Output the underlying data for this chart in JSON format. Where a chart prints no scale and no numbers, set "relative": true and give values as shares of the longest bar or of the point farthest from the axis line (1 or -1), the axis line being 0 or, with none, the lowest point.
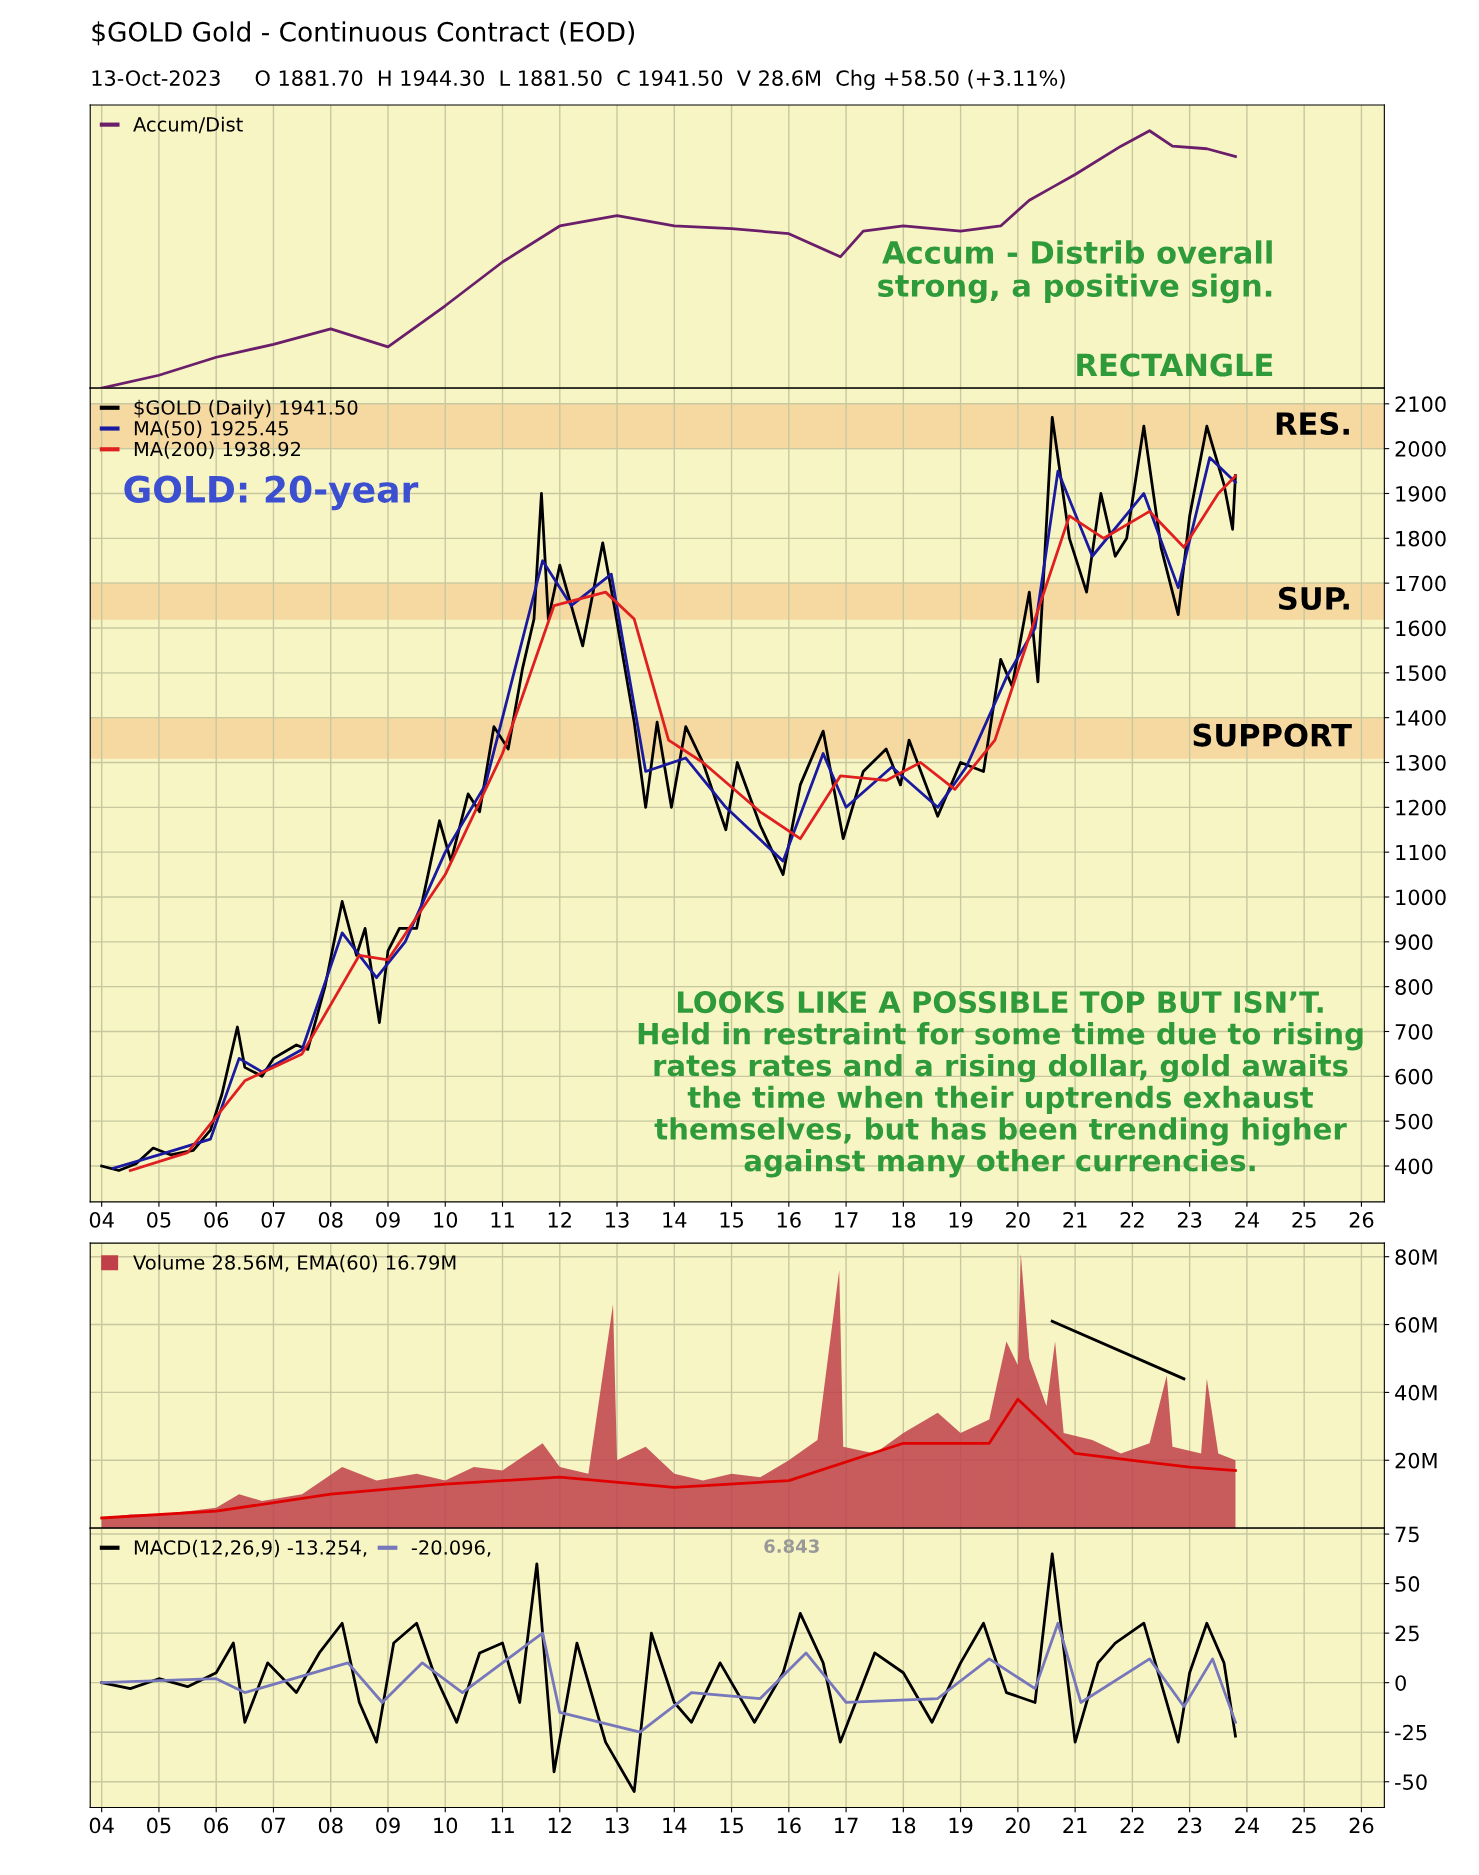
{
  "chart_data": [
    {
      "type": "line",
      "title": "$GOLD Gold - Continuous Contract (EOD)",
      "subtitle": "13-Oct-2023     O 1881.70  H 1944.30  L 1881.50  C 1941.50  V 28.6M  Chg +58.50 (+3.11%)",
      "relative": true,
      "xlim": [
        2003.8,
        2026.4
      ],
      "xticks": [
        2004,
        2005,
        2006,
        2007,
        2008,
        2009,
        2010,
        2011,
        2012,
        2013,
        2014,
        2015,
        2016,
        2017,
        2018,
        2019,
        2020,
        2021,
        2022,
        2023,
        2024,
        2025,
        2026
      ],
      "tick_labels": false,
      "grid": "x",
      "legend": "top left",
      "x": [
        2004,
        2005,
        2006,
        2007,
        2008,
        2009,
        2010,
        2011,
        2012,
        2013,
        2014,
        2015,
        2016,
        2016.9,
        2017.3,
        2018,
        2019,
        2019.7,
        2020.2,
        2020.6,
        2021,
        2021.8,
        2022.3,
        2022.7,
        2023.3,
        2023.8
      ],
      "series": [
        {
          "name": "Accum/Dist",
          "color": "#6b1f6b",
          "values": [
            0,
            0.05,
            0.12,
            0.17,
            0.23,
            0.16,
            0.32,
            0.49,
            0.63,
            0.67,
            0.63,
            0.62,
            0.6,
            0.51,
            0.61,
            0.63,
            0.61,
            0.63,
            0.73,
            0.78,
            0.83,
            0.94,
            1.0,
            0.94,
            0.93,
            0.9
          ]
        }
      ],
      "annotations": [
        "Accum - Distrib overall\nstrong, a positive sign.",
        "RECTANGLE"
      ]
    },
    {
      "type": "line",
      "xlim": [
        2003.8,
        2026.4
      ],
      "ylim": [
        320,
        2135
      ],
      "yticks": [
        400,
        500,
        600,
        700,
        800,
        900,
        1000,
        1100,
        1200,
        1300,
        1400,
        1500,
        1600,
        1700,
        1800,
        1900,
        2000,
        2100
      ],
      "xticks": [
        {
          "value": 2004,
          "label": "04"
        },
        {
          "value": 2005,
          "label": "05"
        },
        {
          "value": 2006,
          "label": "06"
        },
        {
          "value": 2007,
          "label": "07"
        },
        {
          "value": 2008,
          "label": "08"
        },
        {
          "value": 2009,
          "label": "09"
        },
        {
          "value": 2010,
          "label": "10"
        },
        {
          "value": 2011,
          "label": "11"
        },
        {
          "value": 2012,
          "label": "12"
        },
        {
          "value": 2013,
          "label": "13"
        },
        {
          "value": 2014,
          "label": "14"
        },
        {
          "value": 2015,
          "label": "15"
        },
        {
          "value": 2016,
          "label": "16"
        },
        {
          "value": 2017,
          "label": "17"
        },
        {
          "value": 2018,
          "label": "18"
        },
        {
          "value": 2019,
          "label": "19"
        },
        {
          "value": 2020,
          "label": "20"
        },
        {
          "value": 2021,
          "label": "21"
        },
        {
          "value": 2022,
          "label": "22"
        },
        {
          "value": 2023,
          "label": "23"
        },
        {
          "value": 2024,
          "label": "24"
        },
        {
          "value": 2025,
          "label": "25"
        },
        {
          "value": 2026,
          "label": "26"
        }
      ],
      "grid": true,
      "legend": "top left",
      "series": [
        {
          "name": "$GOLD (Daily) 1941.50",
          "color": "#000000",
          "x": [
            2004.0,
            2004.3,
            2004.6,
            2004.9,
            2005.2,
            2005.6,
            2005.9,
            2006.1,
            2006.37,
            2006.5,
            2006.8,
            2007.0,
            2007.4,
            2007.6,
            2007.9,
            2008.2,
            2008.45,
            2008.6,
            2008.85,
            2009.0,
            2009.2,
            2009.5,
            2009.9,
            2010.1,
            2010.4,
            2010.6,
            2010.85,
            2011.1,
            2011.35,
            2011.55,
            2011.68,
            2011.8,
            2012.0,
            2012.4,
            2012.75,
            2012.95,
            2013.3,
            2013.5,
            2013.7,
            2013.95,
            2014.2,
            2014.5,
            2014.9,
            2015.1,
            2015.5,
            2015.9,
            2016.2,
            2016.6,
            2016.95,
            2017.3,
            2017.7,
            2017.95,
            2018.1,
            2018.6,
            2019.0,
            2019.4,
            2019.7,
            2019.9,
            2020.2,
            2020.35,
            2020.6,
            2020.9,
            2021.2,
            2021.45,
            2021.7,
            2021.9,
            2022.2,
            2022.5,
            2022.8,
            2023.0,
            2023.3,
            2023.6,
            2023.75,
            2023.8
          ],
          "values": [
            400,
            390,
            405,
            440,
            425,
            435,
            480,
            560,
            710,
            620,
            600,
            640,
            670,
            660,
            800,
            990,
            870,
            930,
            720,
            880,
            930,
            930,
            1170,
            1080,
            1230,
            1190,
            1380,
            1330,
            1510,
            1620,
            1900,
            1620,
            1740,
            1560,
            1790,
            1650,
            1390,
            1200,
            1390,
            1200,
            1380,
            1300,
            1150,
            1300,
            1160,
            1050,
            1250,
            1370,
            1130,
            1280,
            1330,
            1250,
            1350,
            1180,
            1300,
            1280,
            1530,
            1470,
            1680,
            1480,
            2070,
            1800,
            1680,
            1900,
            1760,
            1800,
            2050,
            1780,
            1630,
            1850,
            2050,
            1920,
            1820,
            1940
          ]
        },
        {
          "name": "MA(50) 1925.45",
          "color": "#1a1aa0",
          "x": [
            2004.2,
            2005,
            2005.9,
            2006.4,
            2006.8,
            2007.5,
            2008.2,
            2008.8,
            2009.3,
            2010,
            2010.7,
            2011.7,
            2012.2,
            2012.9,
            2013.5,
            2014.2,
            2014.9,
            2015.9,
            2016.6,
            2017.0,
            2017.8,
            2018.6,
            2019.1,
            2019.8,
            2020.3,
            2020.7,
            2021.3,
            2022.2,
            2022.8,
            2023.35,
            2023.8
          ],
          "values": [
            395,
            425,
            460,
            640,
            610,
            660,
            920,
            820,
            900,
            1100,
            1250,
            1750,
            1650,
            1720,
            1280,
            1310,
            1200,
            1080,
            1320,
            1200,
            1290,
            1200,
            1290,
            1490,
            1600,
            1950,
            1760,
            1900,
            1690,
            1980,
            1925
          ]
        },
        {
          "name": "MA(200) 1938.92",
          "color": "#e02020",
          "x": [
            2004.5,
            2005.5,
            2006.5,
            2007.5,
            2008.5,
            2009.0,
            2010,
            2011,
            2011.9,
            2012.8,
            2013.3,
            2013.9,
            2014.5,
            2015.5,
            2016.2,
            2016.9,
            2017.7,
            2018.3,
            2018.9,
            2019.6,
            2020.3,
            2020.9,
            2021.5,
            2022.3,
            2022.9,
            2023.5,
            2023.8
          ],
          "values": [
            390,
            430,
            590,
            650,
            870,
            860,
            1050,
            1320,
            1650,
            1680,
            1620,
            1350,
            1300,
            1190,
            1130,
            1270,
            1260,
            1300,
            1240,
            1350,
            1620,
            1850,
            1800,
            1860,
            1780,
            1900,
            1939
          ]
        }
      ],
      "bands": [
        {
          "axis": "y",
          "from": 2000,
          "to": 2100,
          "label": "RES.",
          "color": "#f5d9a0"
        },
        {
          "axis": "y",
          "from": 1620,
          "to": 1700,
          "label": "SUP.",
          "color": "#f5d9a0"
        },
        {
          "axis": "y",
          "from": 1310,
          "to": 1400,
          "label": "SUPPORT",
          "color": "#f5d9a0"
        }
      ],
      "annotations": [
        "GOLD: 20-year",
        "LOOKS LIKE A POSSIBLE TOP BUT ISN’T.\nHeld in restraint for some time due to rising\nrates rates and a rising dollar, gold awaits\nthe time when their uptrends exhaust\nthemselves, but has been trending higher\nagainst many other currencies."
      ]
    },
    {
      "type": "area",
      "xlim": [
        2003.8,
        2026.4
      ],
      "ylim": [
        0,
        84
      ],
      "yticks": [
        {
          "value": 20,
          "label": "20M"
        },
        {
          "value": 40,
          "label": "40M"
        },
        {
          "value": 60,
          "label": "60M"
        },
        {
          "value": 80,
          "label": "80M"
        }
      ],
      "xticks": [
        2004,
        2005,
        2006,
        2007,
        2008,
        2009,
        2010,
        2011,
        2012,
        2013,
        2014,
        2015,
        2016,
        2017,
        2018,
        2019,
        2020,
        2021,
        2022,
        2023,
        2024,
        2025,
        2026
      ],
      "tick_labels": "y",
      "grid": true,
      "legend": "top left",
      "series": [
        {
          "name": "Volume 28.56M, EMA(60) 16.79M",
          "color": "#c0404a",
          "type": "area",
          "x": [
            2004,
            2004.5,
            2005,
            2005.5,
            2006,
            2006.4,
            2006.8,
            2007.5,
            2008.2,
            2008.8,
            2009.5,
            2010,
            2010.5,
            2011,
            2011.7,
            2012,
            2012.5,
            2012.93,
            2013.0,
            2013.5,
            2014,
            2014.5,
            2015,
            2015.5,
            2016,
            2016.5,
            2016.88,
            2016.95,
            2017.5,
            2018,
            2018.6,
            2019,
            2019.5,
            2019.8,
            2020.0,
            2020.05,
            2020.2,
            2020.5,
            2020.65,
            2020.8,
            2021.3,
            2021.8,
            2022.3,
            2022.6,
            2022.7,
            2023.2,
            2023.3,
            2023.5,
            2023.8
          ],
          "values": [
            3,
            4,
            4,
            5,
            6,
            10,
            8,
            10,
            18,
            14,
            16,
            14,
            18,
            17,
            25,
            18,
            16,
            66,
            20,
            24,
            16,
            14,
            16,
            15,
            20,
            26,
            76,
            24,
            22,
            28,
            34,
            28,
            32,
            55,
            48,
            81,
            50,
            36,
            55,
            28,
            26,
            22,
            25,
            45,
            24,
            22,
            44,
            22,
            20
          ]
        },
        {
          "color": "#e00000",
          "type": "line",
          "x": [
            2004,
            2006,
            2008,
            2010,
            2012,
            2014,
            2016,
            2018,
            2019.5,
            2020,
            2020.5,
            2021,
            2022,
            2023,
            2023.8
          ],
          "values": [
            3,
            5,
            10,
            13,
            15,
            12,
            14,
            25,
            25,
            38,
            30,
            22,
            20,
            18,
            17
          ]
        },
        {
          "color": "#000000",
          "type": "line",
          "x": [
            2020.6,
            2022.9
          ],
          "values": [
            61,
            44
          ]
        }
      ]
    },
    {
      "type": "line",
      "xlim": [
        2003.8,
        2026.4
      ],
      "ylim": [
        -63,
        78
      ],
      "yticks": [
        -50,
        -25,
        0,
        25,
        50,
        75
      ],
      "xticks": [
        {
          "value": 2004,
          "label": "04"
        },
        {
          "value": 2005,
          "label": "05"
        },
        {
          "value": 2006,
          "label": "06"
        },
        {
          "value": 2007,
          "label": "07"
        },
        {
          "value": 2008,
          "label": "08"
        },
        {
          "value": 2009,
          "label": "09"
        },
        {
          "value": 2010,
          "label": "10"
        },
        {
          "value": 2011,
          "label": "11"
        },
        {
          "value": 2012,
          "label": "12"
        },
        {
          "value": 2013,
          "label": "13"
        },
        {
          "value": 2014,
          "label": "14"
        },
        {
          "value": 2015,
          "label": "15"
        },
        {
          "value": 2016,
          "label": "16"
        },
        {
          "value": 2017,
          "label": "17"
        },
        {
          "value": 2018,
          "label": "18"
        },
        {
          "value": 2019,
          "label": "19"
        },
        {
          "value": 2020,
          "label": "20"
        },
        {
          "value": 2021,
          "label": "21"
        },
        {
          "value": 2022,
          "label": "22"
        },
        {
          "value": 2023,
          "label": "23"
        },
        {
          "value": 2024,
          "label": "24"
        },
        {
          "value": 2025,
          "label": "25"
        },
        {
          "value": 2026,
          "label": "26"
        }
      ],
      "grid": true,
      "legend": "top left",
      "series": [
        {
          "name": "MACD(12,26,9) -13.254,",
          "color": "#000000",
          "x": [
            2004,
            2004.5,
            2005,
            2005.5,
            2006,
            2006.3,
            2006.5,
            2006.9,
            2007.4,
            2007.8,
            2008.2,
            2008.5,
            2008.8,
            2009.1,
            2009.5,
            2009.8,
            2010.2,
            2010.6,
            2011.0,
            2011.3,
            2011.6,
            2011.9,
            2012.3,
            2012.8,
            2013.3,
            2013.6,
            2014.0,
            2014.3,
            2014.8,
            2015.4,
            2015.9,
            2016.2,
            2016.6,
            2016.9,
            2017.5,
            2018.0,
            2018.5,
            2019.0,
            2019.4,
            2019.8,
            2020.3,
            2020.6,
            2021.0,
            2021.4,
            2021.7,
            2022.2,
            2022.8,
            2023.0,
            2023.3,
            2023.6,
            2023.8
          ],
          "values": [
            0,
            -3,
            2,
            -2,
            5,
            20,
            -20,
            10,
            -5,
            15,
            30,
            -10,
            -30,
            20,
            30,
            5,
            -20,
            15,
            20,
            -10,
            60,
            -45,
            20,
            -30,
            -55,
            25,
            -10,
            -20,
            10,
            -20,
            5,
            35,
            10,
            -30,
            15,
            5,
            -20,
            10,
            30,
            -5,
            -10,
            65,
            -30,
            10,
            20,
            30,
            -30,
            5,
            30,
            10,
            -27
          ]
        },
        {
          "name": "-20.096,",
          "color": "#7777bb",
          "x": [
            2004,
            2006,
            2006.5,
            2008.3,
            2008.9,
            2009.6,
            2010.3,
            2011.7,
            2012.0,
            2013.4,
            2014.3,
            2015.5,
            2016.3,
            2017.0,
            2018.6,
            2019.5,
            2020.3,
            2020.7,
            2021.1,
            2022.3,
            2022.9,
            2023.4,
            2023.8
          ],
          "values": [
            0,
            2,
            -5,
            10,
            -10,
            10,
            -5,
            25,
            -15,
            -25,
            -5,
            -8,
            15,
            -10,
            -8,
            12,
            -3,
            30,
            -10,
            12,
            -12,
            12,
            -20
          ]
        }
      ],
      "annotations": [
        "6.843"
      ]
    }
  ]
}
